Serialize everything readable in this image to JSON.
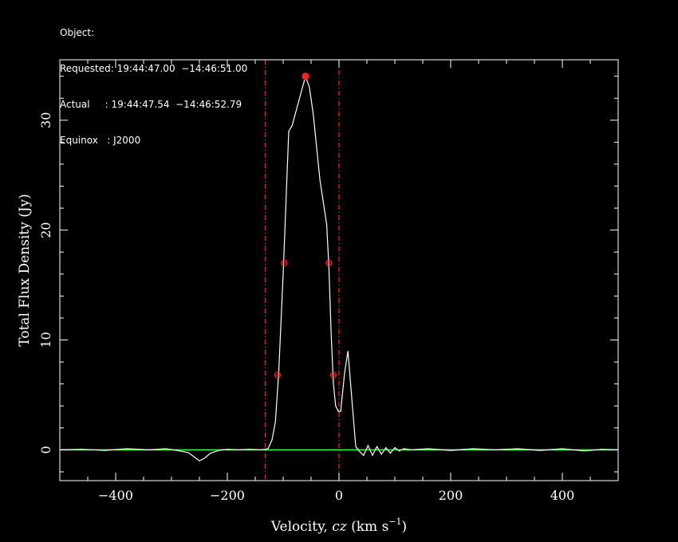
{
  "header": {
    "object_line": "Object:",
    "requested_line": "Requested: 19:44:47.00  −14:46:51.00",
    "actual_line": "Actual     : 19:44:47.54  −14:46:52.79",
    "equinox_line": "Equinox   : J2000"
  },
  "chart_data": {
    "type": "line",
    "xlabel_main": "Velocity, ",
    "xlabel_cz": "cz",
    "xlabel_unit": " (km s",
    "xlabel_exp": "−1",
    "xlabel_close": ")",
    "ylabel": "Total Flux Density (Jy)",
    "xlim": [
      -500,
      500
    ],
    "ylim": [
      -2.8,
      35.5
    ],
    "xticks": [
      -400,
      -200,
      0,
      200,
      400
    ],
    "xtick_labels": [
      "−400",
      "−200",
      "0",
      "200",
      "400"
    ],
    "yticks": [
      0,
      10,
      20,
      30
    ],
    "ytick_labels": [
      "0",
      "10",
      "20",
      "30"
    ],
    "colors": {
      "spectrum": "#ffffff",
      "baseline": "#33ff33",
      "markers": "#ff2020",
      "window_lines": "#ff2020",
      "frame": "#ffffff"
    },
    "spectrum": {
      "x": [
        -500,
        -460,
        -420,
        -380,
        -340,
        -310,
        -290,
        -270,
        -258,
        -250,
        -242,
        -230,
        -215,
        -200,
        -180,
        -160,
        -140,
        -133,
        -127,
        -120,
        -114,
        -108,
        -100,
        -90,
        -84,
        -76,
        -68,
        -60,
        -53,
        -46,
        -40,
        -34,
        -28,
        -22,
        -18,
        -14,
        -10,
        -6,
        -1,
        3,
        10,
        16,
        24,
        30,
        36,
        44,
        52,
        60,
        68,
        76,
        84,
        92,
        100,
        108,
        116,
        130,
        160,
        200,
        240,
        280,
        320,
        360,
        400,
        440,
        470,
        500
      ],
      "y": [
        0.0,
        0.05,
        -0.05,
        0.1,
        0.0,
        0.1,
        -0.05,
        -0.25,
        -0.7,
        -1.0,
        -0.8,
        -0.3,
        -0.05,
        0.05,
        0.0,
        0.05,
        0.0,
        0.05,
        0.1,
        0.9,
        2.5,
        7.0,
        16.0,
        29.0,
        29.5,
        31.0,
        32.5,
        34.0,
        33.0,
        30.5,
        27.5,
        24.5,
        22.5,
        20.5,
        16.5,
        10.5,
        6.0,
        4.0,
        3.5,
        3.5,
        7.0,
        9.0,
        4.0,
        0.3,
        -0.1,
        -0.5,
        0.4,
        -0.5,
        0.3,
        -0.4,
        0.2,
        -0.3,
        0.2,
        -0.1,
        0.1,
        0.0,
        0.1,
        -0.05,
        0.1,
        0.0,
        0.1,
        -0.05,
        0.1,
        -0.1,
        0.05,
        0.0
      ]
    },
    "baseline_y": 0,
    "peak_marker": {
      "x": -60,
      "y": 34.0
    },
    "width_markers": [
      {
        "x": -98,
        "y": 17.0
      },
      {
        "x": -18,
        "y": 17.0
      },
      {
        "x": -110,
        "y": 6.8
      },
      {
        "x": -10,
        "y": 6.8
      }
    ],
    "window_lines_x": [
      -132,
      0
    ]
  }
}
